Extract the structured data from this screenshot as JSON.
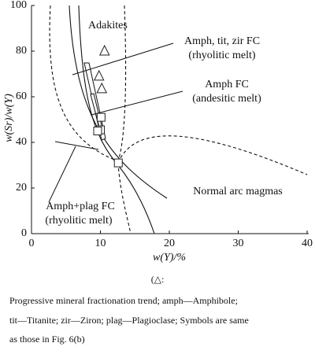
{
  "chart_data": {
    "type": "scatter",
    "x_label": "w(Y)/%",
    "y_label": "w(Sr)/w(Y)",
    "xlim": [
      0,
      40
    ],
    "ylim": [
      0,
      100
    ],
    "xticks": [
      0,
      10,
      20,
      30,
      40
    ],
    "yticks": [
      0,
      20,
      40,
      60,
      80,
      100
    ],
    "series": [
      {
        "marker": "triangle",
        "color": "#222222",
        "x": [
          10.6,
          9.8,
          10.2
        ],
        "values": [
          80,
          69,
          63.5
        ]
      },
      {
        "marker": "square",
        "color": "#222222",
        "x": [
          10.1,
          10,
          9.6,
          12.6
        ],
        "values": [
          51,
          45.5,
          45,
          31
        ]
      }
    ],
    "annotations": [
      "Adakites",
      "Amph, tit, zir FC",
      "(rhyolitic melt)",
      "Amph FC",
      "(andesitic melt)",
      "Amph+plag FC",
      "(rhyolitic melt)",
      "Normal arc magmas"
    ],
    "caption": [
      "(△:",
      "Progressive mineral fractionation trend; amph—Amphibole;",
      "tit—Titanite; zir—Ziron; plag—Plagioclase; Symbols are same",
      "as those in Fig. 6(b)"
    ]
  }
}
